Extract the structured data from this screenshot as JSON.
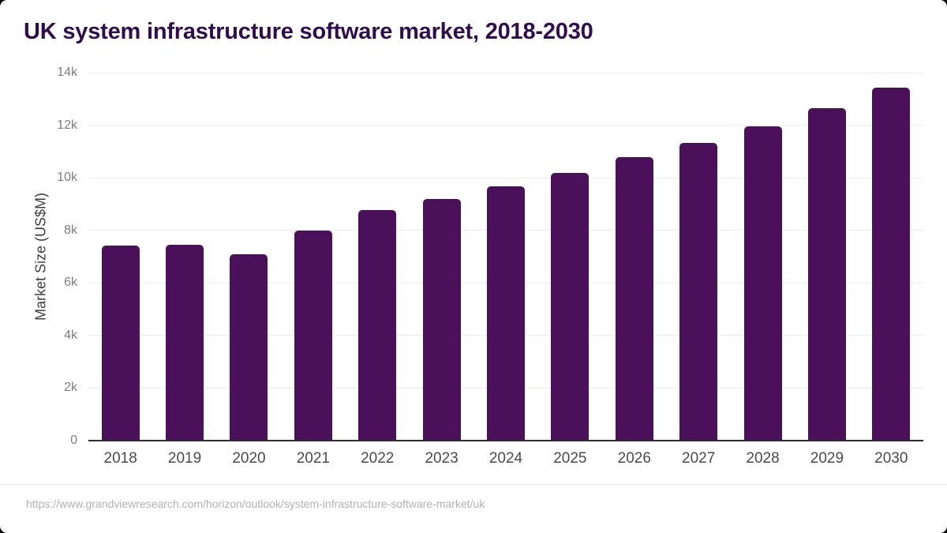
{
  "page": {
    "background": "#000000",
    "card_background": "#ffffff"
  },
  "title": {
    "text": "UK system infrastructure software market, 2018-2030",
    "color": "#300d4f"
  },
  "source": {
    "url": "https://www.grandviewresearch.com/horizon/outlook/system-infrastructure-software-market/uk"
  },
  "chart_data": {
    "type": "bar",
    "title": "UK system infrastructure software market, 2018-2030",
    "xlabel": "",
    "ylabel": "Market Size (US$M)",
    "categories": [
      "2018",
      "2019",
      "2020",
      "2021",
      "2022",
      "2023",
      "2024",
      "2025",
      "2026",
      "2027",
      "2028",
      "2029",
      "2030"
    ],
    "values": [
      7410,
      7450,
      7090,
      7980,
      8780,
      9200,
      9670,
      10190,
      10780,
      11340,
      11970,
      12650,
      13440
    ],
    "ylim": [
      0,
      14000
    ],
    "yticks": [
      {
        "value": 0,
        "label": "0"
      },
      {
        "value": 2000,
        "label": "2k"
      },
      {
        "value": 4000,
        "label": "4k"
      },
      {
        "value": 6000,
        "label": "6k"
      },
      {
        "value": 8000,
        "label": "8k"
      },
      {
        "value": 10000,
        "label": "10k"
      },
      {
        "value": 12000,
        "label": "12k"
      },
      {
        "value": 14000,
        "label": "14k"
      }
    ],
    "grid": "horizontal",
    "legend": "none",
    "bar_color": "#4a1059",
    "gridline_color": "#ececec",
    "axis_line_color": "#2d2d2d"
  }
}
